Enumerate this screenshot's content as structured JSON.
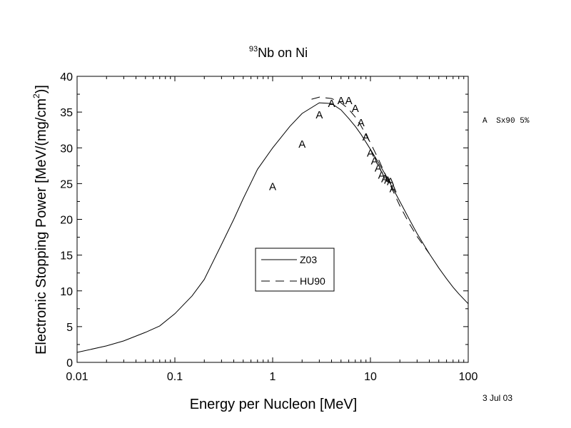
{
  "chart_data": {
    "type": "line",
    "title_sup": "93",
    "title_main": "Nb on Ni",
    "xlabel": "Energy per Nucleon [MeV]",
    "ylabel_main": "Electronic Stopping Power [MeV/(mg/cm",
    "ylabel_sup": "2",
    "ylabel_end": ")]",
    "x_scale": "log",
    "xlim": [
      0.01,
      100
    ],
    "ylim": [
      0,
      40
    ],
    "x_ticks": [
      0.01,
      0.1,
      1,
      10,
      100
    ],
    "x_tick_labels": [
      "0.01",
      "0.1",
      "1",
      "10",
      "100"
    ],
    "y_ticks": [
      0,
      5,
      10,
      15,
      20,
      25,
      30,
      35,
      40
    ],
    "y_tick_labels": [
      "0",
      "5",
      "10",
      "15",
      "20",
      "25",
      "30",
      "35",
      "40"
    ],
    "grid": false,
    "series": [
      {
        "name": "Z03",
        "style": "solid",
        "x": [
          0.01,
          0.02,
          0.03,
          0.05,
          0.07,
          0.1,
          0.15,
          0.2,
          0.3,
          0.4,
          0.5,
          0.7,
          1.0,
          1.5,
          2.0,
          3.0,
          4.0,
          5.0,
          6.0,
          7.0,
          8.0,
          10,
          12,
          15,
          20,
          25,
          30,
          40,
          50,
          60,
          70,
          80,
          100
        ],
        "y": [
          1.4,
          2.3,
          3.0,
          4.2,
          5.1,
          6.8,
          9.3,
          11.6,
          16.5,
          20.0,
          22.9,
          27.0,
          30.0,
          33.0,
          34.8,
          36.3,
          36.2,
          35.3,
          34.1,
          33.0,
          31.9,
          29.8,
          28.0,
          25.7,
          22.5,
          20.0,
          18.0,
          15.2,
          13.2,
          11.7,
          10.5,
          9.6,
          8.2
        ]
      },
      {
        "name": "HU90",
        "style": "dashed",
        "x": [
          2.5,
          3.0,
          4.0,
          5.0,
          6.0,
          7.0,
          8.0,
          10,
          12,
          15,
          20,
          25,
          30,
          40
        ],
        "y": [
          36.8,
          37.1,
          36.9,
          36.3,
          35.4,
          34.3,
          33.1,
          30.7,
          28.5,
          25.6,
          21.9,
          19.4,
          17.6,
          15.2
        ]
      }
    ],
    "markers": {
      "symbol": "A",
      "label": "Sx90 5%",
      "x": [
        1.0,
        2.0,
        3.0,
        4.0,
        5.0,
        6.0,
        7.0,
        8.0,
        9.0,
        10,
        11,
        12,
        13,
        14,
        15,
        16,
        17
      ],
      "y": [
        24.6,
        30.5,
        34.6,
        36.2,
        36.6,
        36.6,
        35.5,
        33.5,
        31.5,
        29.3,
        28.2,
        27.2,
        26.2,
        25.7,
        25.5,
        25.3,
        24.3
      ]
    },
    "legend": {
      "position": "center",
      "entries": [
        {
          "label": "Z03",
          "style": "solid"
        },
        {
          "label": "HU90",
          "style": "dashed"
        }
      ]
    },
    "date_note": "3 Jul 03"
  }
}
